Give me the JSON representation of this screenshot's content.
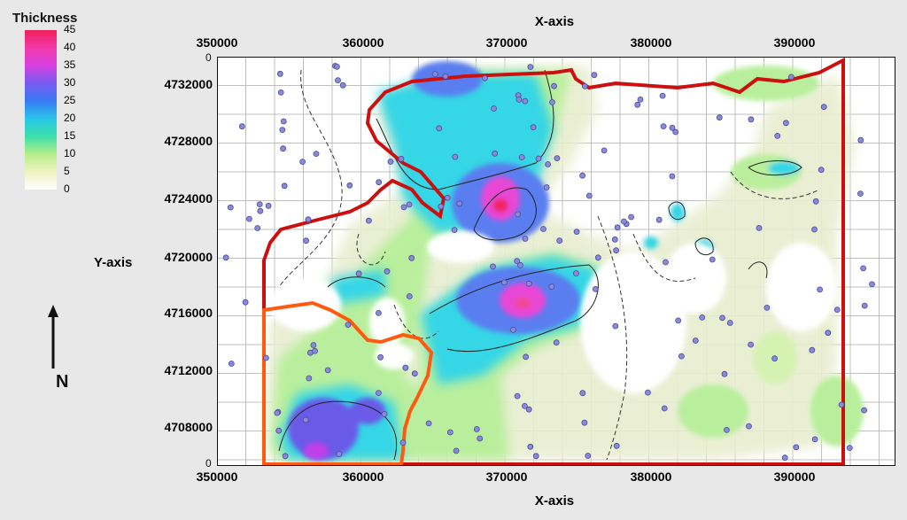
{
  "legend": {
    "title": "Thickness",
    "labels": [
      "45",
      "40",
      "35",
      "30",
      "25",
      "20",
      "15",
      "10",
      "5",
      "0"
    ]
  },
  "axes": {
    "x_title_top": "X-axis",
    "x_title_bottom": "X-axis",
    "y_title": "Y-axis",
    "x_ticks": [
      "350000",
      "360000",
      "370000",
      "380000",
      "390000"
    ],
    "y_ticks": [
      "4732000",
      "4728000",
      "4724000",
      "4720000",
      "4716000",
      "4712000",
      "4708000"
    ],
    "corner_zero": "0"
  },
  "north_arrow": {
    "label": "N"
  },
  "colors": {
    "boundary_red": "#cc1010",
    "boundary_orange": "#ff5a10",
    "well_points": "#8a8ad8"
  }
}
